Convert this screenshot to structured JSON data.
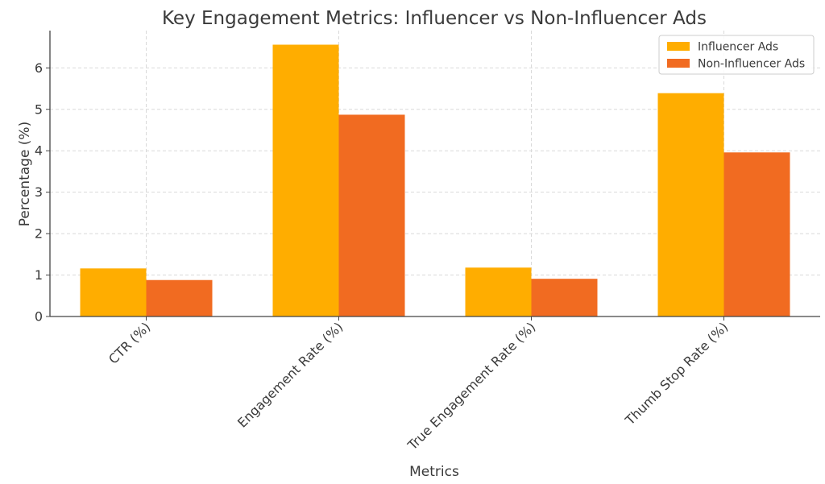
{
  "chart_data": {
    "type": "bar",
    "title": "Key Engagement Metrics: Influencer vs Non-Influencer Ads",
    "xlabel": "Metrics",
    "ylabel": "Percentage (%)",
    "categories": [
      "CTR (%)",
      "Engagement Rate (%)",
      "True Engagement Rate (%)",
      "Thumb Stop Rate (%)"
    ],
    "series": [
      {
        "name": "Influencer Ads",
        "color": "#FFAD00",
        "values": [
          1.16,
          6.56,
          1.18,
          5.39
        ]
      },
      {
        "name": "Non-Influencer Ads",
        "color": "#F16B21",
        "values": [
          0.88,
          4.87,
          0.91,
          3.96
        ]
      }
    ],
    "ylim": [
      0,
      6.9
    ],
    "yticks": [
      0,
      1,
      2,
      3,
      4,
      5,
      6
    ],
    "grid": true,
    "legend_position": "top-right"
  }
}
